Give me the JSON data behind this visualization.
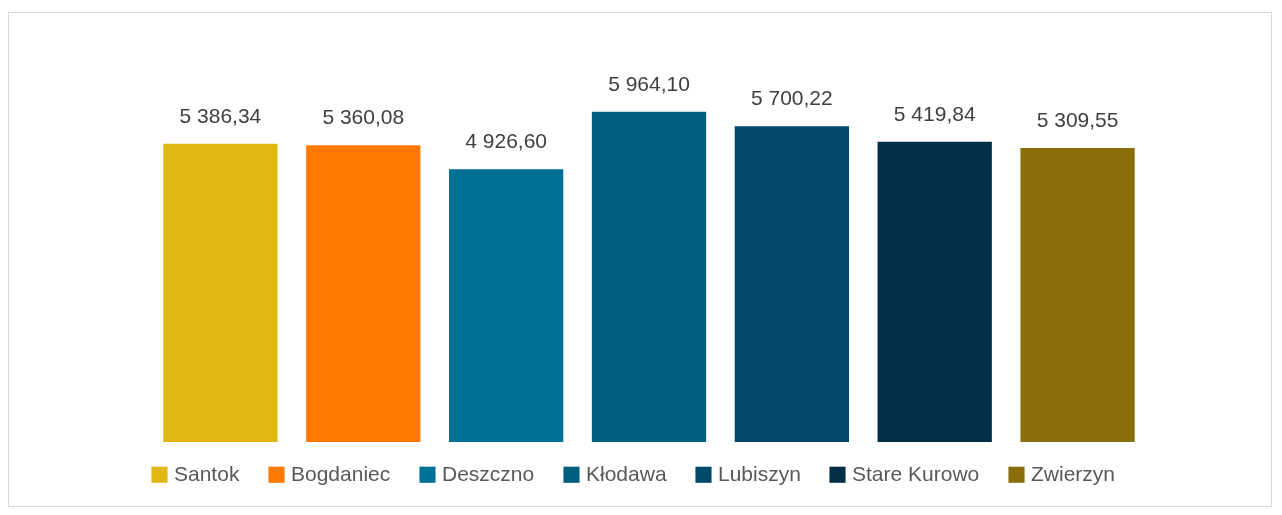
{
  "chart_data": {
    "type": "bar",
    "categories": [
      null
    ],
    "series": [
      {
        "name": "Santok",
        "color": "#e1b712",
        "values": [
          5386.34
        ],
        "value_labels": [
          "5 386,34"
        ]
      },
      {
        "name": "Bogdaniec",
        "color": "#ff7a00",
        "values": [
          5360.08
        ],
        "value_labels": [
          "5 360,08"
        ]
      },
      {
        "name": "Deszczno",
        "color": "#007196",
        "values": [
          4926.6
        ],
        "value_labels": [
          "4 926,60"
        ]
      },
      {
        "name": "Kłodawa",
        "color": "#005e7d",
        "values": [
          5964.1
        ],
        "value_labels": [
          "5 964,10"
        ]
      },
      {
        "name": "Lubiszyn",
        "color": "#00496a",
        "values": [
          5700.22
        ],
        "value_labels": [
          "5 700,22"
        ]
      },
      {
        "name": "Stare Kurowo",
        "color": "#002f47",
        "values": [
          5419.84
        ],
        "value_labels": [
          "5 419,84"
        ]
      },
      {
        "name": "Zwierzyn",
        "color": "#8a6e09",
        "values": [
          5309.55
        ],
        "value_labels": [
          "5 309,55"
        ]
      }
    ],
    "legend": "bottom"
  }
}
